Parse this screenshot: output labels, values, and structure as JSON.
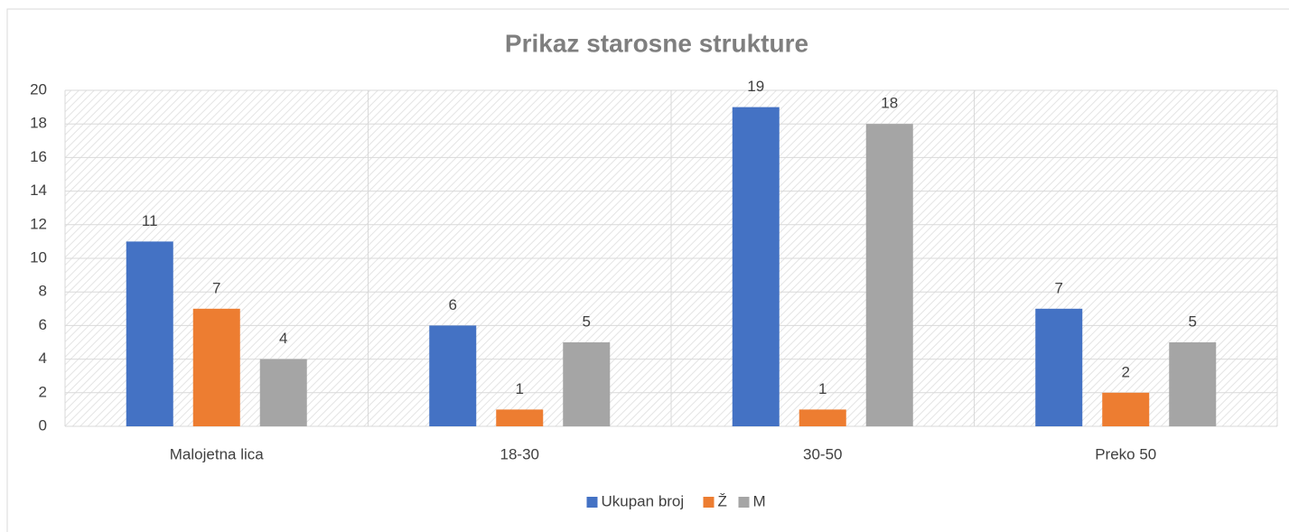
{
  "chart_data": {
    "type": "bar",
    "title": "Prikaz starosne strukture",
    "categories": [
      "Malojetna lica",
      "18-30",
      "30-50",
      "Preko 50"
    ],
    "series": [
      {
        "name": "Ukupan broj",
        "color": "#4472c4",
        "values": [
          11,
          6,
          19,
          7
        ]
      },
      {
        "name": "Ž",
        "color": "#ed7d31",
        "values": [
          7,
          1,
          1,
          2
        ]
      },
      {
        "name": "M",
        "color": "#a5a5a5",
        "values": [
          4,
          5,
          18,
          5
        ]
      }
    ],
    "ylim": [
      0,
      20
    ],
    "yticks": [
      0,
      2,
      4,
      6,
      8,
      10,
      12,
      14,
      16,
      18,
      20
    ],
    "grid": true,
    "legend": "bottom"
  }
}
